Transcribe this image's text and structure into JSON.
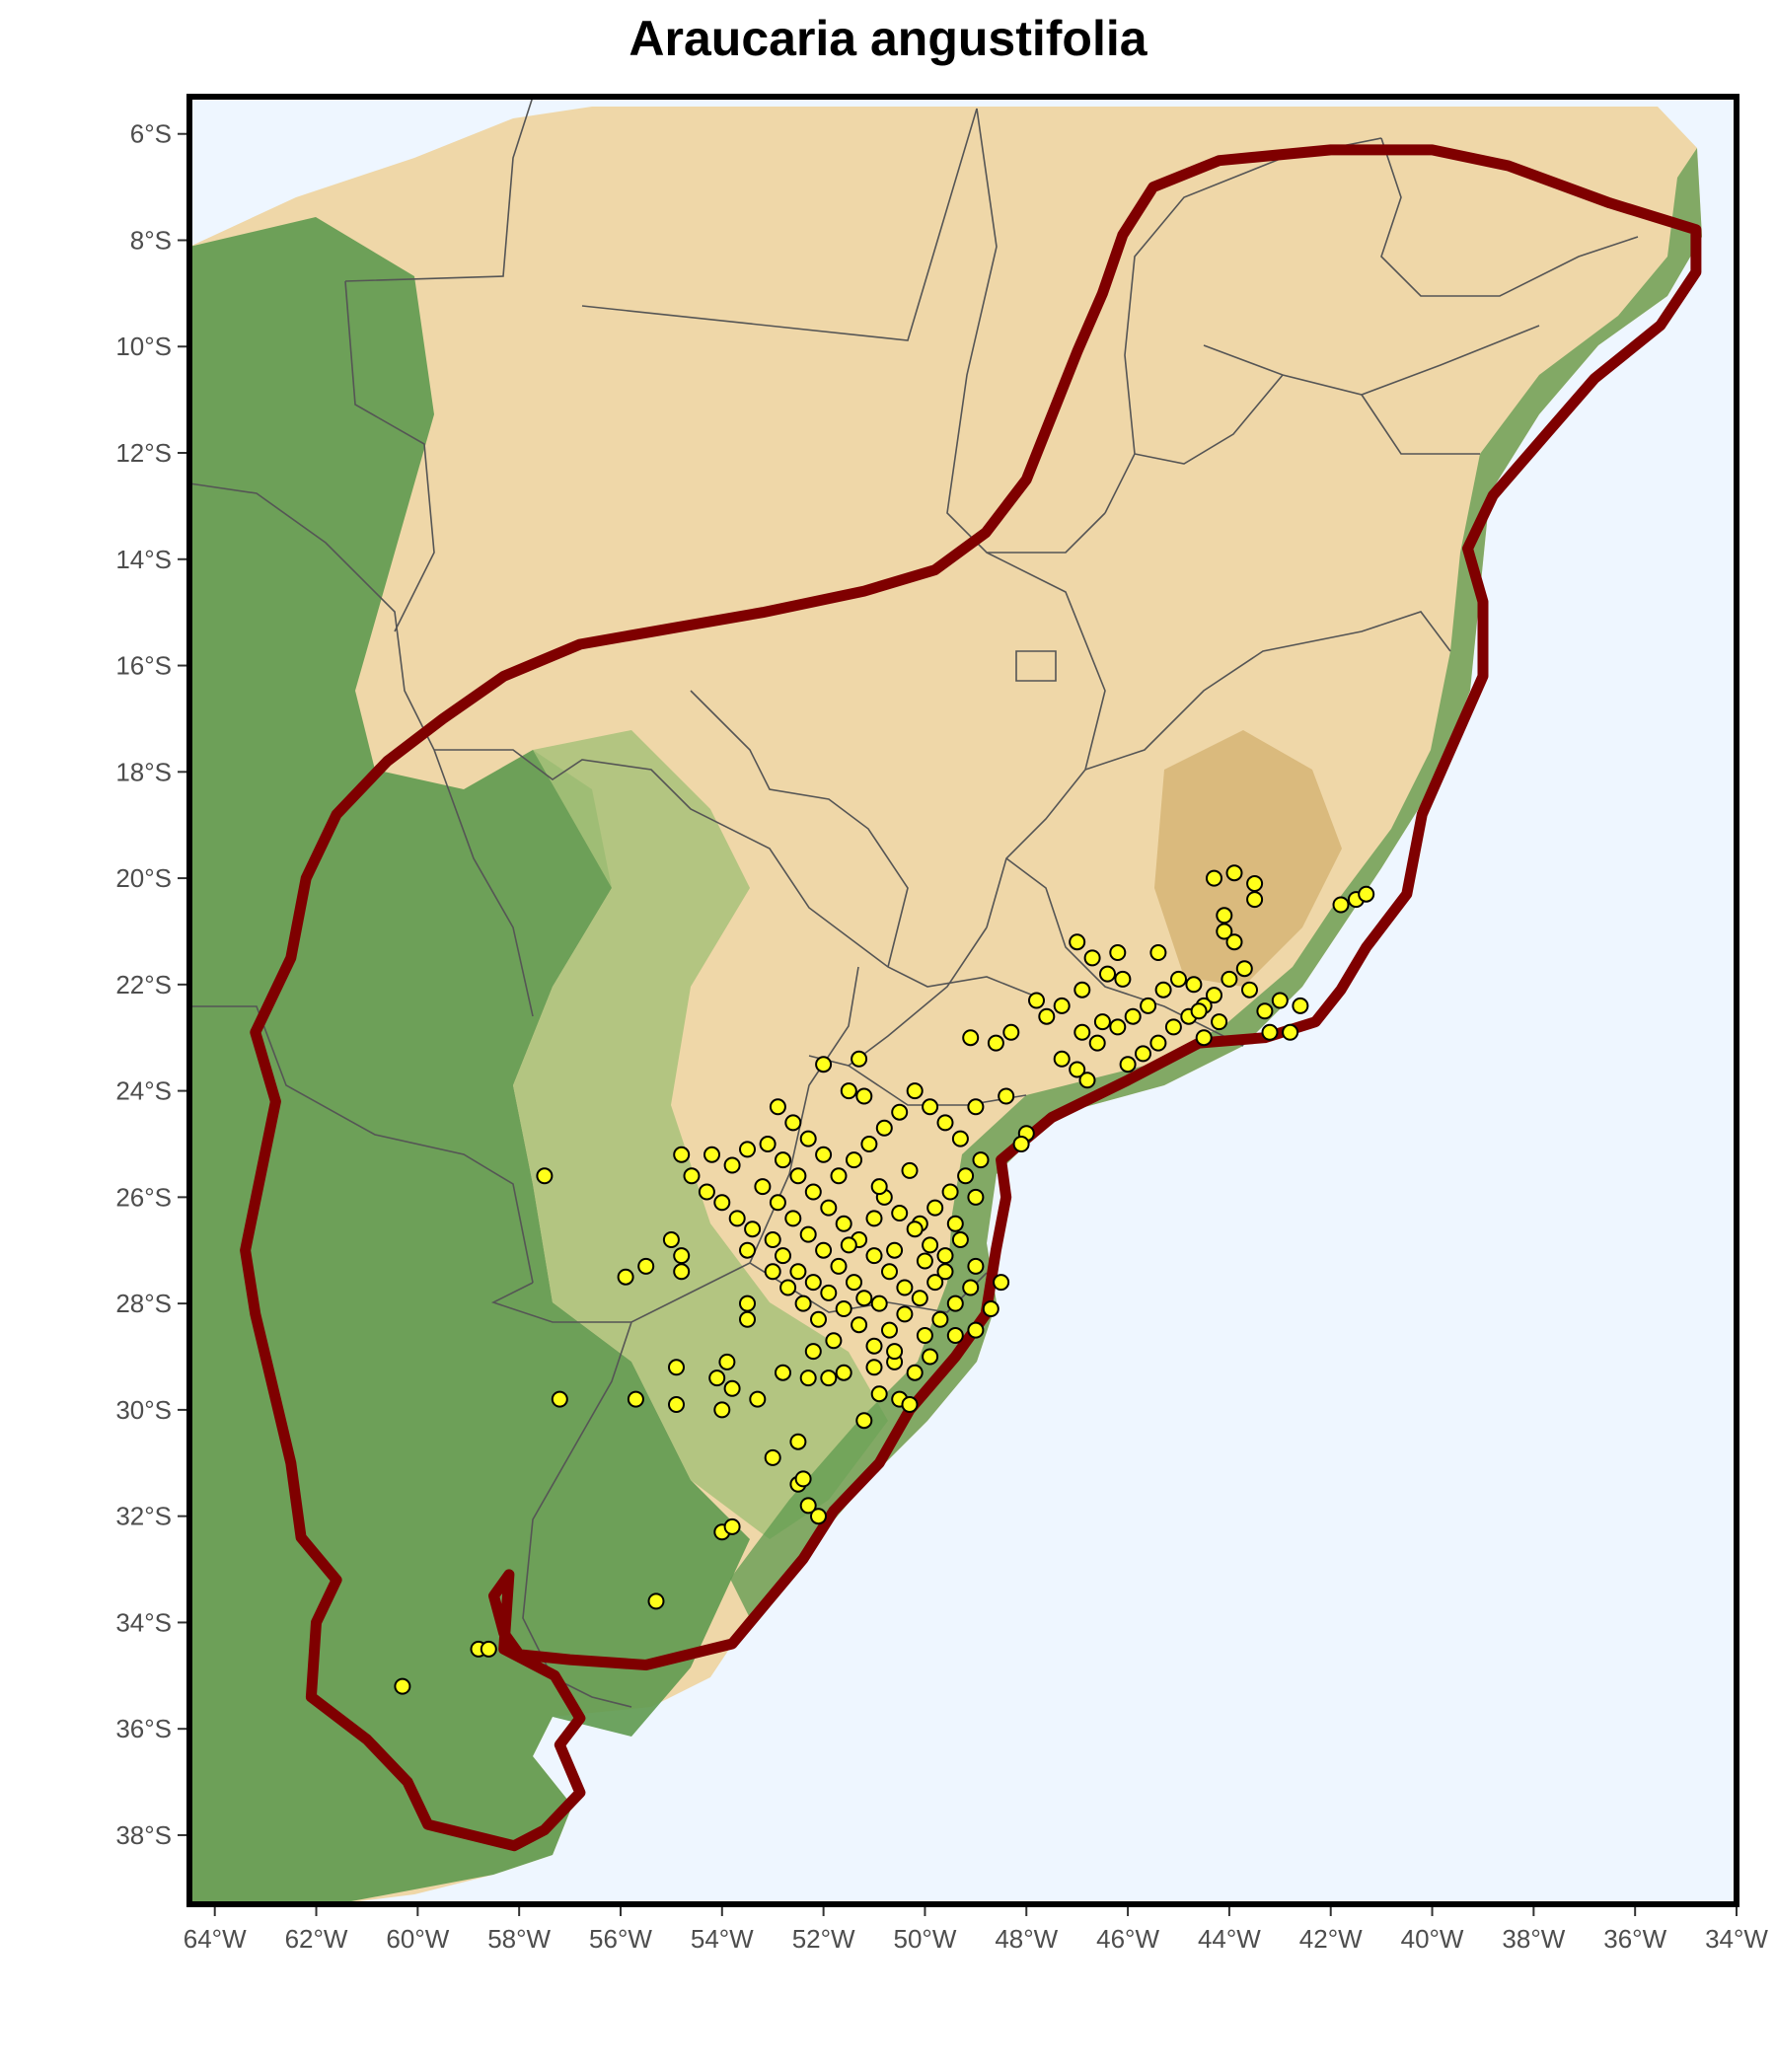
{
  "title": "Araucaria angustifolia",
  "axes": {
    "x_ticks": [
      "64°W",
      "62°W",
      "60°W",
      "58°W",
      "56°W",
      "54°W",
      "52°W",
      "50°W",
      "48°W",
      "46°W",
      "44°W",
      "42°W",
      "40°W",
      "38°W",
      "36°W",
      "34°W"
    ],
    "y_ticks": [
      "6°S",
      "8°S",
      "10°S",
      "12°S",
      "14°S",
      "16°S",
      "18°S",
      "20°S",
      "22°S",
      "24°S",
      "26°S",
      "28°S",
      "30°S",
      "32°S",
      "34°S",
      "36°S",
      "38°S"
    ]
  },
  "colors": {
    "ocean": "#eef6ff",
    "lowland": "#5e9a4f",
    "midland": "#a8c27a",
    "upland": "#efd7a8",
    "highland": "#c9a35a",
    "range_outline": "#7f0000",
    "occurrence_fill": "#ffff1a",
    "occurrence_stroke": "#000000",
    "borders": "#555555",
    "frame": "#000000"
  },
  "layers": {
    "range_name": "range-polygon",
    "points_name": "occurrence-points"
  },
  "chart_data": {
    "type": "scatter",
    "xlim": [
      -64.5,
      -34
    ],
    "ylim": [
      -39.3,
      -5.3
    ],
    "x_ticks_deg": [
      -64,
      -62,
      -60,
      -58,
      -56,
      -54,
      -52,
      -50,
      -48,
      -46,
      -44,
      -42,
      -40,
      -38,
      -36,
      -34
    ],
    "y_ticks_deg": [
      -6,
      -8,
      -10,
      -12,
      -14,
      -16,
      -18,
      -20,
      -22,
      -24,
      -26,
      -28,
      -30,
      -32,
      -34,
      -36,
      -38
    ],
    "range_outline": [
      [
        -42.0,
        -6.3
      ],
      [
        -40.0,
        -6.3
      ],
      [
        -38.5,
        -6.6
      ],
      [
        -36.5,
        -7.3
      ],
      [
        -34.8,
        -7.8
      ],
      [
        -34.8,
        -8.6
      ],
      [
        -35.5,
        -9.6
      ],
      [
        -36.8,
        -10.6
      ],
      [
        -37.8,
        -11.7
      ],
      [
        -38.8,
        -12.8
      ],
      [
        -39.3,
        -13.8
      ],
      [
        -39.0,
        -14.8
      ],
      [
        -39.0,
        -16.2
      ],
      [
        -39.6,
        -17.5
      ],
      [
        -40.2,
        -18.8
      ],
      [
        -40.5,
        -20.3
      ],
      [
        -41.3,
        -21.3
      ],
      [
        -41.8,
        -22.1
      ],
      [
        -42.3,
        -22.7
      ],
      [
        -43.3,
        -23.0
      ],
      [
        -44.6,
        -23.1
      ],
      [
        -46.0,
        -23.8
      ],
      [
        -47.5,
        -24.5
      ],
      [
        -48.5,
        -25.3
      ],
      [
        -48.4,
        -26.0
      ],
      [
        -48.6,
        -27.0
      ],
      [
        -48.8,
        -28.2
      ],
      [
        -49.4,
        -29.0
      ],
      [
        -50.3,
        -30.0
      ],
      [
        -50.9,
        -31.0
      ],
      [
        -51.8,
        -31.9
      ],
      [
        -52.4,
        -32.8
      ],
      [
        -53.1,
        -33.6
      ],
      [
        -53.8,
        -34.4
      ],
      [
        -55.5,
        -34.8
      ],
      [
        -57.0,
        -34.7
      ],
      [
        -58.0,
        -34.6
      ],
      [
        -58.3,
        -34.2
      ],
      [
        -58.5,
        -33.5
      ],
      [
        -58.2,
        -33.1
      ],
      [
        -58.3,
        -34.5
      ],
      [
        -57.3,
        -35.0
      ],
      [
        -56.8,
        -35.8
      ],
      [
        -57.2,
        -36.3
      ],
      [
        -56.8,
        -37.2
      ],
      [
        -57.5,
        -37.9
      ],
      [
        -58.1,
        -38.2
      ],
      [
        -59.8,
        -37.8
      ],
      [
        -60.2,
        -37.0
      ],
      [
        -61.0,
        -36.2
      ],
      [
        -62.1,
        -35.4
      ],
      [
        -62.0,
        -34.0
      ],
      [
        -61.6,
        -33.2
      ],
      [
        -62.3,
        -32.4
      ],
      [
        -62.5,
        -31.0
      ],
      [
        -62.8,
        -29.8
      ],
      [
        -63.2,
        -28.2
      ],
      [
        -63.4,
        -27.0
      ],
      [
        -63.1,
        -25.6
      ],
      [
        -62.8,
        -24.2
      ],
      [
        -63.2,
        -22.9
      ],
      [
        -62.5,
        -21.5
      ],
      [
        -62.2,
        -20.0
      ],
      [
        -61.6,
        -18.8
      ],
      [
        -60.6,
        -17.8
      ],
      [
        -59.5,
        -17.0
      ],
      [
        -58.3,
        -16.2
      ],
      [
        -56.8,
        -15.6
      ],
      [
        -55.0,
        -15.3
      ],
      [
        -53.2,
        -15.0
      ],
      [
        -51.2,
        -14.6
      ],
      [
        -49.8,
        -14.2
      ],
      [
        -48.8,
        -13.5
      ],
      [
        -48.0,
        -12.5
      ],
      [
        -47.5,
        -11.3
      ],
      [
        -47.0,
        -10.1
      ],
      [
        -46.5,
        -9.0
      ],
      [
        -46.1,
        -7.9
      ],
      [
        -45.5,
        -7.0
      ],
      [
        -44.2,
        -6.5
      ],
      [
        -42.0,
        -6.3
      ]
    ],
    "occurrences": [
      [
        -60.3,
        -35.2
      ],
      [
        -58.8,
        -34.5
      ],
      [
        -58.6,
        -34.5
      ],
      [
        -55.3,
        -33.6
      ],
      [
        -54.0,
        -32.3
      ],
      [
        -53.8,
        -32.2
      ],
      [
        -52.1,
        -32.0
      ],
      [
        -52.3,
        -31.8
      ],
      [
        -52.5,
        -31.4
      ],
      [
        -52.4,
        -31.3
      ],
      [
        -53.0,
        -30.9
      ],
      [
        -52.5,
        -30.6
      ],
      [
        -57.2,
        -29.8
      ],
      [
        -55.7,
        -29.8
      ],
      [
        -54.9,
        -29.9
      ],
      [
        -54.0,
        -30.0
      ],
      [
        -53.3,
        -29.8
      ],
      [
        -53.8,
        -29.6
      ],
      [
        -54.1,
        -29.4
      ],
      [
        -54.9,
        -29.2
      ],
      [
        -53.9,
        -29.1
      ],
      [
        -52.8,
        -29.3
      ],
      [
        -52.3,
        -29.4
      ],
      [
        -51.9,
        -29.4
      ],
      [
        -51.6,
        -29.3
      ],
      [
        -51.0,
        -29.2
      ],
      [
        -50.6,
        -29.1
      ],
      [
        -50.2,
        -29.3
      ],
      [
        -50.5,
        -29.8
      ],
      [
        -51.2,
        -30.2
      ],
      [
        -50.3,
        -29.9
      ],
      [
        -50.9,
        -29.7
      ],
      [
        -49.9,
        -29.0
      ],
      [
        -49.4,
        -28.6
      ],
      [
        -49.0,
        -28.5
      ],
      [
        -48.7,
        -28.1
      ],
      [
        -48.5,
        -27.6
      ],
      [
        -49.0,
        -27.3
      ],
      [
        -49.3,
        -26.8
      ],
      [
        -49.6,
        -27.1
      ],
      [
        -49.8,
        -27.6
      ],
      [
        -50.1,
        -27.9
      ],
      [
        -50.4,
        -28.2
      ],
      [
        -50.7,
        -28.5
      ],
      [
        -51.0,
        -28.8
      ],
      [
        -51.3,
        -28.4
      ],
      [
        -51.6,
        -28.1
      ],
      [
        -51.9,
        -27.8
      ],
      [
        -52.2,
        -27.6
      ],
      [
        -52.5,
        -27.4
      ],
      [
        -52.8,
        -27.1
      ],
      [
        -53.0,
        -26.8
      ],
      [
        -53.4,
        -26.6
      ],
      [
        -53.7,
        -26.4
      ],
      [
        -54.0,
        -26.1
      ],
      [
        -54.3,
        -25.9
      ],
      [
        -54.6,
        -25.6
      ],
      [
        -54.8,
        -25.2
      ],
      [
        -54.2,
        -25.2
      ],
      [
        -53.8,
        -25.4
      ],
      [
        -53.5,
        -25.1
      ],
      [
        -53.1,
        -25.0
      ],
      [
        -52.8,
        -25.3
      ],
      [
        -52.5,
        -25.6
      ],
      [
        -52.2,
        -25.9
      ],
      [
        -51.9,
        -26.2
      ],
      [
        -51.6,
        -26.5
      ],
      [
        -51.3,
        -26.8
      ],
      [
        -51.0,
        -27.1
      ],
      [
        -50.7,
        -27.4
      ],
      [
        -50.4,
        -27.7
      ],
      [
        -50.1,
        -26.5
      ],
      [
        -49.8,
        -26.2
      ],
      [
        -49.5,
        -25.9
      ],
      [
        -49.2,
        -25.6
      ],
      [
        -48.9,
        -25.3
      ],
      [
        -49.0,
        -26.0
      ],
      [
        -49.3,
        -24.9
      ],
      [
        -49.6,
        -24.6
      ],
      [
        -49.9,
        -24.3
      ],
      [
        -50.2,
        -24.0
      ],
      [
        -50.5,
        -24.4
      ],
      [
        -50.8,
        -24.7
      ],
      [
        -51.1,
        -25.0
      ],
      [
        -51.4,
        -25.3
      ],
      [
        -51.7,
        -25.6
      ],
      [
        -52.0,
        -25.2
      ],
      [
        -52.3,
        -24.9
      ],
      [
        -52.6,
        -24.6
      ],
      [
        -52.9,
        -24.3
      ],
      [
        -51.5,
        -24.0
      ],
      [
        -51.2,
        -24.1
      ],
      [
        -51.3,
        -23.4
      ],
      [
        -52.0,
        -23.5
      ],
      [
        -50.8,
        -26.0
      ],
      [
        -50.5,
        -26.3
      ],
      [
        -50.2,
        -26.6
      ],
      [
        -49.9,
        -26.9
      ],
      [
        -49.6,
        -27.4
      ],
      [
        -51.4,
        -27.6
      ],
      [
        -51.7,
        -27.3
      ],
      [
        -52.0,
        -27.0
      ],
      [
        -52.3,
        -26.7
      ],
      [
        -52.6,
        -26.4
      ],
      [
        -52.9,
        -26.1
      ],
      [
        -53.2,
        -25.8
      ],
      [
        -50.6,
        -28.9
      ],
      [
        -50.9,
        -28.0
      ],
      [
        -51.2,
        -27.9
      ],
      [
        -49.7,
        -28.3
      ],
      [
        -50.0,
        -28.6
      ],
      [
        -49.4,
        -28.0
      ],
      [
        -49.1,
        -27.7
      ],
      [
        -51.8,
        -28.7
      ],
      [
        -52.1,
        -28.3
      ],
      [
        -52.4,
        -28.0
      ],
      [
        -52.7,
        -27.7
      ],
      [
        -53.0,
        -27.4
      ],
      [
        -53.5,
        -27.0
      ],
      [
        -53.5,
        -28.3
      ],
      [
        -53.5,
        -28.0
      ],
      [
        -55.9,
        -27.5
      ],
      [
        -55.5,
        -27.3
      ],
      [
        -55.0,
        -26.8
      ],
      [
        -54.8,
        -27.1
      ],
      [
        -54.8,
        -27.4
      ],
      [
        -57.5,
        -25.6
      ],
      [
        -48.4,
        -24.1
      ],
      [
        -48.0,
        -24.8
      ],
      [
        -48.1,
        -25.0
      ],
      [
        -49.0,
        -24.3
      ],
      [
        -48.3,
        -22.9
      ],
      [
        -48.6,
        -23.1
      ],
      [
        -49.1,
        -23.0
      ],
      [
        -47.8,
        -22.3
      ],
      [
        -47.6,
        -22.6
      ],
      [
        -47.3,
        -23.4
      ],
      [
        -47.0,
        -23.6
      ],
      [
        -46.8,
        -23.8
      ],
      [
        -46.6,
        -23.1
      ],
      [
        -46.9,
        -22.9
      ],
      [
        -46.5,
        -22.7
      ],
      [
        -46.2,
        -22.8
      ],
      [
        -45.9,
        -22.6
      ],
      [
        -45.6,
        -22.4
      ],
      [
        -45.3,
        -22.1
      ],
      [
        -45.0,
        -21.9
      ],
      [
        -44.7,
        -22.0
      ],
      [
        -44.5,
        -22.4
      ],
      [
        -44.8,
        -22.6
      ],
      [
        -45.1,
        -22.8
      ],
      [
        -45.4,
        -23.1
      ],
      [
        -45.7,
        -23.3
      ],
      [
        -46.0,
        -23.5
      ],
      [
        -44.3,
        -22.2
      ],
      [
        -44.0,
        -21.9
      ],
      [
        -43.7,
        -21.7
      ],
      [
        -43.9,
        -21.2
      ],
      [
        -44.1,
        -20.7
      ],
      [
        -43.5,
        -20.1
      ],
      [
        -43.5,
        -20.4
      ],
      [
        -43.9,
        -19.9
      ],
      [
        -44.3,
        -20.0
      ],
      [
        -44.1,
        -21.0
      ],
      [
        -43.6,
        -22.1
      ],
      [
        -43.3,
        -22.5
      ],
      [
        -43.0,
        -22.3
      ],
      [
        -42.6,
        -22.4
      ],
      [
        -42.8,
        -22.9
      ],
      [
        -43.2,
        -22.9
      ],
      [
        -46.4,
        -21.8
      ],
      [
        -46.7,
        -21.5
      ],
      [
        -47.0,
        -21.2
      ],
      [
        -46.2,
        -21.4
      ],
      [
        -46.1,
        -21.9
      ],
      [
        -44.6,
        -22.5
      ],
      [
        -46.9,
        -22.1
      ],
      [
        -41.5,
        -20.4
      ],
      [
        -41.3,
        -20.3
      ],
      [
        -41.8,
        -20.5
      ],
      [
        -44.5,
        -23.0
      ],
      [
        -45.4,
        -21.4
      ],
      [
        -47.3,
        -22.4
      ],
      [
        -44.2,
        -22.7
      ],
      [
        -51.0,
        -26.4
      ],
      [
        -50.3,
        -25.5
      ],
      [
        -50.9,
        -25.8
      ],
      [
        -51.5,
        -26.9
      ],
      [
        -52.2,
        -28.9
      ],
      [
        -50.0,
        -27.2
      ],
      [
        -49.4,
        -26.5
      ],
      [
        -50.6,
        -27.0
      ]
    ]
  }
}
